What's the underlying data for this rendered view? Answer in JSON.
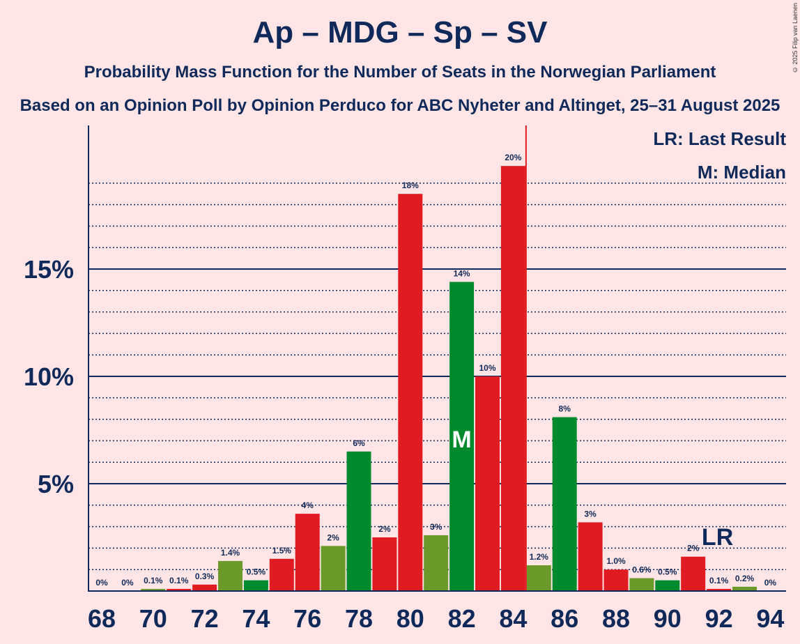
{
  "title": "Ap – MDG – Sp – SV",
  "subtitle": "Probability Mass Function for the Number of Seats in the Norwegian Parliament",
  "subtitle2": "Based on an Opinion Poll by Opinion Perduco for ABC Nyheter and Altinget, 25–31 August 2025",
  "credit": "© 2025 Filip van Laenen",
  "legend": {
    "lr": "LR: Last Result",
    "m": "M: Median"
  },
  "colors": {
    "red": "#E01B22",
    "green": "#008A2E",
    "olive": "#6B9A2B",
    "axis": "#0F2A5A"
  },
  "chart_data": {
    "type": "bar",
    "x": [
      68,
      69,
      70,
      71,
      72,
      73,
      74,
      75,
      76,
      77,
      78,
      79,
      80,
      81,
      82,
      83,
      84,
      85,
      86,
      87,
      88,
      89,
      90,
      91,
      92,
      93,
      94
    ],
    "values": [
      0,
      0,
      0.1,
      0.1,
      0.3,
      1.4,
      0.5,
      1.5,
      3.6,
      2.1,
      6.5,
      2.5,
      18.5,
      2.6,
      14.4,
      10.0,
      19.8,
      1.2,
      8.1,
      3.2,
      1.0,
      0.6,
      0.5,
      1.6,
      0.1,
      0.2,
      0
    ],
    "labels": [
      "0%",
      "0%",
      "0.1%",
      "0.1%",
      "0.3%",
      "1.4%",
      "0.5%",
      "1.5%",
      "4%",
      "2%",
      "6%",
      "2%",
      "18%",
      "3%",
      "14%",
      "10%",
      "20%",
      "1.2%",
      "8%",
      "3%",
      "1.0%",
      "0.6%",
      "0.5%",
      "2%",
      "0.1%",
      "0.2%",
      "0%"
    ],
    "bar_colors": [
      "red",
      "green",
      "olive",
      "red",
      "red",
      "olive",
      "green",
      "red",
      "red",
      "olive",
      "green",
      "red",
      "red",
      "olive",
      "green",
      "red",
      "red",
      "olive",
      "green",
      "red",
      "red",
      "olive",
      "green",
      "red",
      "red",
      "olive",
      "green"
    ],
    "xticks": [
      68,
      70,
      72,
      74,
      76,
      78,
      80,
      82,
      84,
      86,
      88,
      90,
      92,
      94
    ],
    "yticks": [
      {
        "v": 5,
        "label": "5%"
      },
      {
        "v": 10,
        "label": "10%"
      },
      {
        "v": 15,
        "label": "15%"
      }
    ],
    "ylim": [
      0,
      21
    ],
    "median": 82,
    "median_label": "M",
    "last_result": 92,
    "last_result_label": "LR",
    "threshold_after": 84
  }
}
